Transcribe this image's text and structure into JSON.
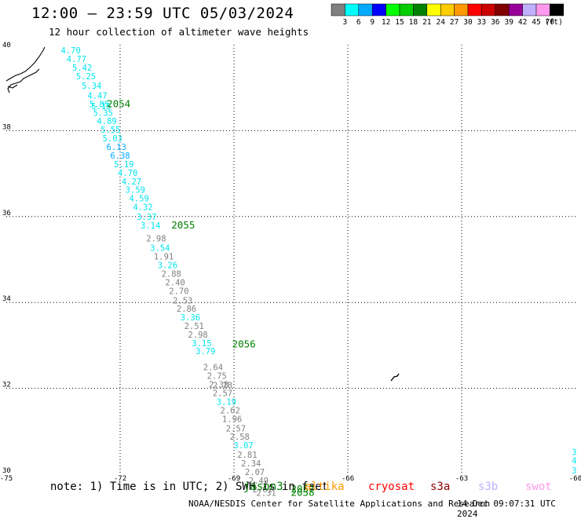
{
  "title": "12:00 — 23:59 UTC 05/03/2024",
  "subtitle": "12 hour collection of altimeter wave heights",
  "note": "note: 1) Time is in UTC; 2) SWH is in feet",
  "missions": [
    {
      "name": "jason3",
      "color": "#008000"
    },
    {
      "name": "altika",
      "color": "#ff9900"
    },
    {
      "name": "cryosat",
      "color": "#ff0000"
    },
    {
      "name": "s3a",
      "color": "#8b0000"
    },
    {
      "name": "s3b",
      "color": "#c0b0ff"
    },
    {
      "name": "swot",
      "color": "#ff99ee"
    }
  ],
  "credit": "NOAA/NESDIS Center for Satellite Applications and Research",
  "credit_time": "14 Dec 09:07:31 UTC 2024",
  "colorbar": {
    "unit": "(ft)",
    "colors": [
      "#808080",
      "#00ffff",
      "#00aaff",
      "#0000ff",
      "#00ff00",
      "#00cc00",
      "#008000",
      "#ffff00",
      "#ffcc00",
      "#ff9900",
      "#ff0000",
      "#cc0000",
      "#800000",
      "#990099",
      "#c0b0ff",
      "#ff99ee",
      "#000000"
    ],
    "labels": [
      "3",
      "6",
      "9",
      "12",
      "15",
      "18",
      "21",
      "24",
      "27",
      "30",
      "33",
      "36",
      "39",
      "42",
      "45",
      "70"
    ]
  },
  "chart_data": {
    "type": "scatter",
    "xlim": [
      -75,
      -60
    ],
    "ylim": [
      30,
      40
    ],
    "x_ticks": [
      "-75",
      "-72",
      "-69",
      "-66",
      "-63",
      "-60"
    ],
    "y_ticks": [
      "30",
      "32",
      "34",
      "36",
      "38",
      "40"
    ],
    "grid": true,
    "points": [
      {
        "lon": -73.3,
        "lat": 39.8,
        "value": "4.70"
      },
      {
        "lon": -73.15,
        "lat": 39.6,
        "value": "4.77"
      },
      {
        "lon": -73.0,
        "lat": 39.4,
        "value": "5.42"
      },
      {
        "lon": -72.9,
        "lat": 39.2,
        "value": "5.25"
      },
      {
        "lon": -72.75,
        "lat": 38.98,
        "value": "5.34"
      },
      {
        "lon": -72.6,
        "lat": 38.75,
        "value": "4.47"
      },
      {
        "lon": -72.55,
        "lat": 38.55,
        "value": "5.85"
      },
      {
        "lon": -72.5,
        "lat": 38.5,
        "value": "5.15"
      },
      {
        "lon": -72.45,
        "lat": 38.35,
        "value": "5.35"
      },
      {
        "lon": -72.35,
        "lat": 38.15,
        "value": "4.89"
      },
      {
        "lon": -72.25,
        "lat": 37.95,
        "value": "5.55"
      },
      {
        "lon": -72.2,
        "lat": 37.75,
        "value": "5.03"
      },
      {
        "lon": -72.1,
        "lat": 37.55,
        "value": "6.13"
      },
      {
        "lon": -72.0,
        "lat": 37.35,
        "value": "6.38"
      },
      {
        "lon": -71.9,
        "lat": 37.15,
        "value": "5.19"
      },
      {
        "lon": -71.8,
        "lat": 36.95,
        "value": "4.70"
      },
      {
        "lon": -71.7,
        "lat": 36.75,
        "value": "4.27"
      },
      {
        "lon": -71.6,
        "lat": 36.55,
        "value": "3.59"
      },
      {
        "lon": -71.5,
        "lat": 36.35,
        "value": "4.59"
      },
      {
        "lon": -71.4,
        "lat": 36.15,
        "value": "4.32"
      },
      {
        "lon": -71.3,
        "lat": 35.92,
        "value": "3.37"
      },
      {
        "lon": -71.2,
        "lat": 35.72,
        "value": "3.14"
      },
      {
        "lon": -71.05,
        "lat": 35.42,
        "value": "2.98"
      },
      {
        "lon": -70.95,
        "lat": 35.2,
        "value": "3.54"
      },
      {
        "lon": -70.85,
        "lat": 35.0,
        "value": "1.91"
      },
      {
        "lon": -70.75,
        "lat": 34.8,
        "value": "3.26"
      },
      {
        "lon": -70.65,
        "lat": 34.6,
        "value": "2.88"
      },
      {
        "lon": -70.55,
        "lat": 34.4,
        "value": "2.40"
      },
      {
        "lon": -70.45,
        "lat": 34.2,
        "value": "2.70"
      },
      {
        "lon": -70.35,
        "lat": 33.98,
        "value": "2.53"
      },
      {
        "lon": -70.25,
        "lat": 33.78,
        "value": "2.86"
      },
      {
        "lon": -70.15,
        "lat": 33.58,
        "value": "3.36"
      },
      {
        "lon": -70.05,
        "lat": 33.38,
        "value": "2.51"
      },
      {
        "lon": -69.95,
        "lat": 33.18,
        "value": "2.98"
      },
      {
        "lon": -69.85,
        "lat": 32.98,
        "value": "3.15"
      },
      {
        "lon": -69.75,
        "lat": 32.8,
        "value": "3.79"
      },
      {
        "lon": -69.55,
        "lat": 32.42,
        "value": "2.64"
      },
      {
        "lon": -69.45,
        "lat": 32.22,
        "value": "2.75"
      },
      {
        "lon": -69.4,
        "lat": 32.02,
        "value": "2.38"
      },
      {
        "lon": -69.3,
        "lat": 32.0,
        "value": "2.28"
      },
      {
        "lon": -69.3,
        "lat": 31.82,
        "value": "2.57"
      },
      {
        "lon": -69.2,
        "lat": 31.62,
        "value": "3.19"
      },
      {
        "lon": -69.1,
        "lat": 31.42,
        "value": "2.62"
      },
      {
        "lon": -69.05,
        "lat": 31.22,
        "value": "1.96"
      },
      {
        "lon": -68.95,
        "lat": 31.0,
        "value": "2.57"
      },
      {
        "lon": -68.85,
        "lat": 30.8,
        "value": "2.58"
      },
      {
        "lon": -68.75,
        "lat": 30.6,
        "value": "3.07"
      },
      {
        "lon": -68.65,
        "lat": 30.38,
        "value": "2.81"
      },
      {
        "lon": -68.55,
        "lat": 30.18,
        "value": "2.34"
      },
      {
        "lon": -68.45,
        "lat": 29.98,
        "value": "2.07"
      },
      {
        "lon": -68.35,
        "lat": 29.78,
        "value": "2.49"
      },
      {
        "lon": -68.25,
        "lat": 29.58,
        "value": "2.61"
      },
      {
        "lon": -68.15,
        "lat": 29.5,
        "value": "2.31"
      }
    ],
    "passes": [
      {
        "label": "2054",
        "lon": -72.35,
        "lat": 38.55
      },
      {
        "label": "2055",
        "lon": -70.65,
        "lat": 35.72
      },
      {
        "label": "2056",
        "lon": -69.05,
        "lat": 32.95
      },
      {
        "label": "2057",
        "lon": -67.5,
        "lat": 29.58
      },
      {
        "label": "2058",
        "lon": -67.5,
        "lat": 29.5
      }
    ],
    "edge_values": [
      {
        "lon": -60.1,
        "lat": 30.45,
        "value": "3"
      },
      {
        "lon": -60.1,
        "lat": 30.25,
        "value": "4"
      },
      {
        "lon": -60.1,
        "lat": 30.02,
        "value": "3"
      }
    ]
  }
}
